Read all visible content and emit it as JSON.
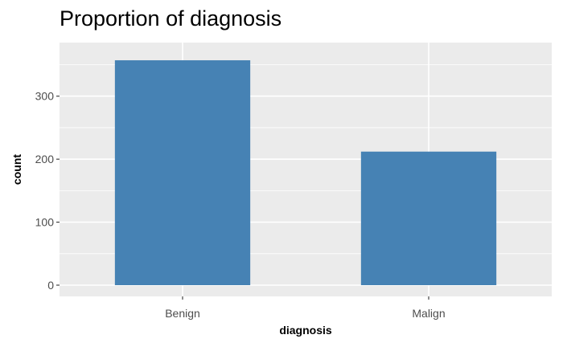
{
  "chart_data": {
    "type": "bar",
    "title": "Proportion of diagnosis",
    "xlabel": "diagnosis",
    "ylabel": "count",
    "categories": [
      "Benign",
      "Malign"
    ],
    "values": [
      357,
      212
    ],
    "ylim": [
      0,
      380
    ],
    "yticks": [
      0,
      100,
      200,
      300
    ],
    "grid": true,
    "bar_color": "#4682b4",
    "panel_color": "#ebebeb",
    "grid_color": "#ffffff"
  }
}
